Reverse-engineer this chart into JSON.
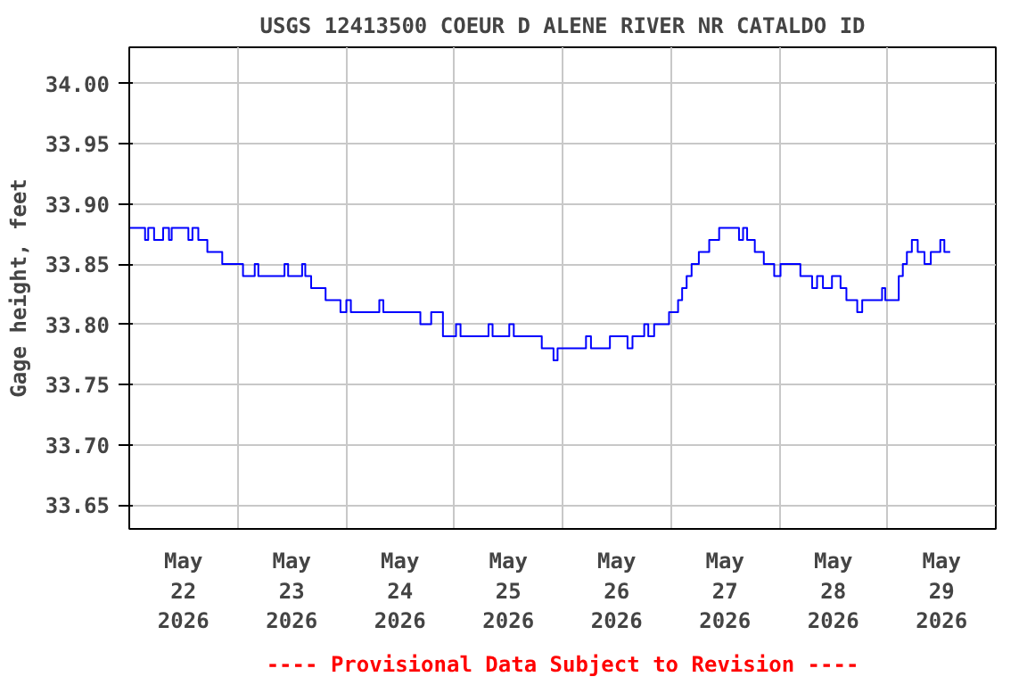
{
  "chart_data": {
    "type": "step",
    "title": "USGS 12413500 COEUR D ALENE RIVER NR CATALDO ID",
    "ylabel": "Gage height, feet",
    "annotations": [
      "---- Provisional Data Subject to Revision ----"
    ],
    "x": [
      "2026-05-22T00:00",
      "2026-05-22T03:30",
      "2026-05-22T04:12",
      "2026-05-22T05:30",
      "2026-05-22T07:30",
      "2026-05-22T08:48",
      "2026-05-22T09:24",
      "2026-05-22T13:06",
      "2026-05-22T14:00",
      "2026-05-22T15:18",
      "2026-05-22T17:18",
      "2026-05-22T20:36",
      "2026-05-23T01:12",
      "2026-05-23T03:48",
      "2026-05-23T04:36",
      "2026-05-23T10:24",
      "2026-05-23T11:12",
      "2026-05-23T14:18",
      "2026-05-23T15:00",
      "2026-05-23T16:18",
      "2026-05-23T19:30",
      "2026-05-23T22:48",
      "2026-05-24T00:06",
      "2026-05-24T01:06",
      "2026-05-24T07:24",
      "2026-05-24T08:18",
      "2026-05-24T16:30",
      "2026-05-24T18:54",
      "2026-05-24T21:30",
      "2026-05-25T00:24",
      "2026-05-25T01:24",
      "2026-05-25T07:36",
      "2026-05-25T08:30",
      "2026-05-25T12:12",
      "2026-05-25T13:12",
      "2026-05-25T19:24",
      "2026-05-25T22:00",
      "2026-05-25T22:54",
      "2026-05-26T05:12",
      "2026-05-26T06:18",
      "2026-05-26T10:30",
      "2026-05-26T14:24",
      "2026-05-26T15:30",
      "2026-05-26T18:06",
      "2026-05-26T19:00",
      "2026-05-26T20:18",
      "2026-05-26T23:36",
      "2026-05-27T01:36",
      "2026-05-27T02:30",
      "2026-05-27T03:30",
      "2026-05-27T04:36",
      "2026-05-27T06:12",
      "2026-05-27T08:30",
      "2026-05-27T10:42",
      "2026-05-27T15:06",
      "2026-05-27T16:00",
      "2026-05-27T16:54",
      "2026-05-27T18:36",
      "2026-05-27T20:36",
      "2026-05-27T22:54",
      "2026-05-28T00:18",
      "2026-05-28T04:42",
      "2026-05-28T07:18",
      "2026-05-28T08:24",
      "2026-05-28T09:42",
      "2026-05-28T11:42",
      "2026-05-28T13:36",
      "2026-05-28T14:54",
      "2026-05-28T17:18",
      "2026-05-28T18:24",
      "2026-05-28T22:48",
      "2026-05-28T23:30",
      "2026-05-29T02:30",
      "2026-05-29T03:24",
      "2026-05-29T04:18",
      "2026-05-29T05:24",
      "2026-05-29T06:42",
      "2026-05-29T08:12",
      "2026-05-29T09:36",
      "2026-05-29T11:42",
      "2026-05-29T12:36",
      "2026-05-29T13:54"
    ],
    "series": [
      {
        "color": "#0000ff",
        "values": [
          33.88,
          33.87,
          33.88,
          33.87,
          33.88,
          33.87,
          33.88,
          33.87,
          33.88,
          33.87,
          33.86,
          33.85,
          33.84,
          33.85,
          33.84,
          33.85,
          33.84,
          33.85,
          33.84,
          33.83,
          33.82,
          33.81,
          33.82,
          33.81,
          33.82,
          33.81,
          33.8,
          33.81,
          33.79,
          33.8,
          33.79,
          33.8,
          33.79,
          33.8,
          33.79,
          33.78,
          33.77,
          33.78,
          33.79,
          33.78,
          33.79,
          33.78,
          33.79,
          33.8,
          33.79,
          33.8,
          33.81,
          33.82,
          33.83,
          33.84,
          33.85,
          33.86,
          33.87,
          33.88,
          33.87,
          33.88,
          33.87,
          33.86,
          33.85,
          33.84,
          33.85,
          33.84,
          33.83,
          33.84,
          33.83,
          33.84,
          33.83,
          33.82,
          33.81,
          33.82,
          33.83,
          33.82,
          33.84,
          33.85,
          33.86,
          33.87,
          33.86,
          33.85,
          33.86,
          33.87,
          33.86,
          33.86
        ]
      }
    ],
    "xlim": [
      "2026-05-22T00:00",
      "2026-05-30T00:00"
    ],
    "xticks": [
      {
        "value": "2026-05-22T00:00",
        "label": null
      },
      {
        "value": "2026-05-22T12:00",
        "label": "May\n22\n2026"
      },
      {
        "value": "2026-05-23T00:00",
        "label": null
      },
      {
        "value": "2026-05-23T12:00",
        "label": "May\n23\n2026"
      },
      {
        "value": "2026-05-24T00:00",
        "label": null
      },
      {
        "value": "2026-05-24T12:00",
        "label": "May\n24\n2026"
      },
      {
        "value": "2026-05-25T00:00",
        "label": null
      },
      {
        "value": "2026-05-25T12:00",
        "label": "May\n25\n2026"
      },
      {
        "value": "2026-05-26T00:00",
        "label": null
      },
      {
        "value": "2026-05-26T12:00",
        "label": "May\n26\n2026"
      },
      {
        "value": "2026-05-27T00:00",
        "label": null
      },
      {
        "value": "2026-05-27T12:00",
        "label": "May\n27\n2026"
      },
      {
        "value": "2026-05-28T00:00",
        "label": null
      },
      {
        "value": "2026-05-28T12:00",
        "label": "May\n28\n2026"
      },
      {
        "value": "2026-05-29T00:00",
        "label": null
      },
      {
        "value": "2026-05-29T12:00",
        "label": "May\n29\n2026"
      },
      {
        "value": "2026-05-30T00:00",
        "label": null
      }
    ],
    "ylim": [
      33.63,
      34.03
    ],
    "yticks": [
      {
        "value": 33.65,
        "label": "33.65"
      },
      {
        "value": 33.7,
        "label": "33.70"
      },
      {
        "value": 33.75,
        "label": "33.75"
      },
      {
        "value": 33.8,
        "label": "33.80"
      },
      {
        "value": 33.85,
        "label": "33.85"
      },
      {
        "value": 33.9,
        "label": "33.90"
      },
      {
        "value": 33.95,
        "label": "33.95"
      },
      {
        "value": 34.0,
        "label": "34.00"
      }
    ],
    "grid": true,
    "line_style": "solid",
    "marker": "none"
  }
}
